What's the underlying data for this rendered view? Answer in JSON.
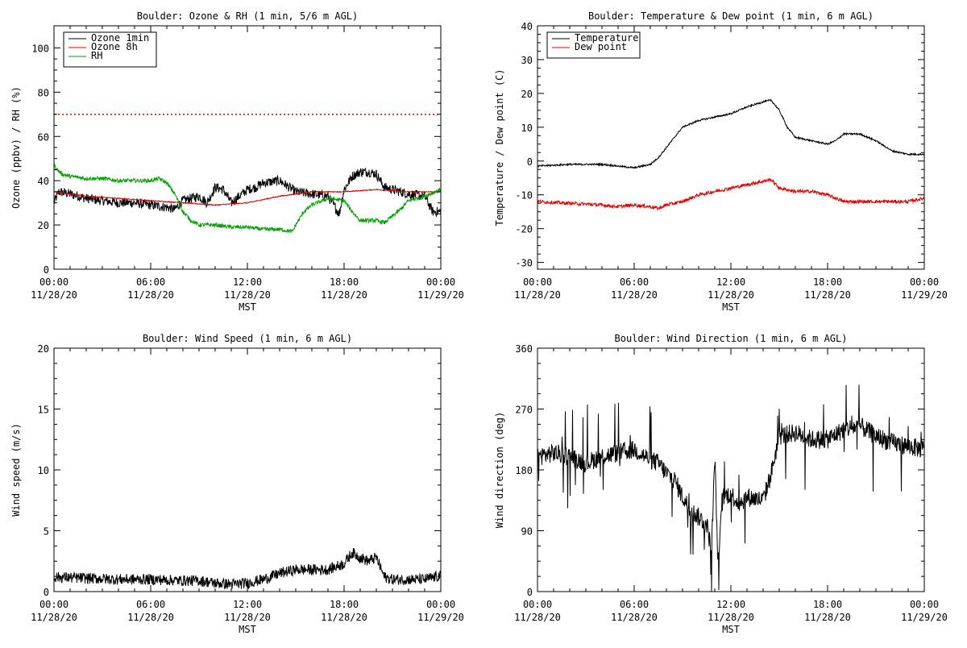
{
  "colors": {
    "black": "#000000",
    "red": "#dd0000",
    "green": "#00a000",
    "background": "#ffffff"
  },
  "chart_data": [
    {
      "id": "ozone",
      "type": "line",
      "title": "Boulder: Ozone & RH (1 min, 5/6 m AGL)",
      "xlabel": "MST",
      "ylabel": "Ozone (ppbv) / RH (%)",
      "xlim": [
        0,
        24
      ],
      "ylim": [
        0,
        110
      ],
      "yticks": [
        0,
        20,
        40,
        60,
        80,
        100
      ],
      "xticks": [
        {
          "x": 0,
          "time": "00:00",
          "date": "11/28/20"
        },
        {
          "x": 6,
          "time": "06:00",
          "date": "11/28/20"
        },
        {
          "x": 12,
          "time": "12:00",
          "date": "11/28/20"
        },
        {
          "x": 18,
          "time": "18:00",
          "date": "11/28/20"
        },
        {
          "x": 24,
          "time": "00:00",
          "date": "11/29/20"
        }
      ],
      "legend_position": "top-left",
      "reference_line": {
        "y": 70,
        "color": "#dd0000",
        "style": "dotted"
      },
      "series": [
        {
          "name": "Ozone 1min",
          "color": "#000000",
          "noise": 2.2,
          "x": [
            0,
            0.3,
            1,
            2,
            3,
            4,
            5,
            6,
            7,
            7.5,
            8,
            9,
            9.5,
            10,
            10.5,
            11,
            11.5,
            12,
            12.5,
            13,
            14,
            15,
            16,
            17,
            17.7,
            18,
            18.5,
            19,
            19.5,
            20,
            20.5,
            21,
            22,
            23,
            23.5,
            24
          ],
          "y": [
            30,
            35,
            34,
            32,
            31,
            30,
            30,
            29,
            28,
            27,
            31,
            33,
            30,
            37,
            36,
            30,
            33,
            36,
            37,
            39,
            40,
            35,
            34,
            33,
            25,
            36,
            42,
            44,
            44,
            43,
            37,
            36,
            34,
            33,
            26,
            26
          ]
        },
        {
          "name": "Ozone 8h",
          "color": "#dd0000",
          "noise": 0.2,
          "x": [
            0,
            2,
            4,
            6,
            8,
            10,
            12,
            14,
            16,
            18,
            20,
            22,
            24
          ],
          "y": [
            35,
            33,
            32,
            31,
            30,
            29,
            30,
            33,
            35,
            35,
            36,
            35,
            35
          ]
        },
        {
          "name": "RH",
          "color": "#00a000",
          "noise": 0.9,
          "x": [
            0,
            0.2,
            0.5,
            1,
            2,
            3,
            4,
            5,
            6,
            6.5,
            7,
            7.5,
            8,
            8.5,
            9,
            10,
            11,
            12,
            13,
            14,
            14.8,
            15,
            15.5,
            16,
            17,
            18,
            18.5,
            19,
            20,
            20.5,
            21,
            21.5,
            22,
            23,
            24
          ],
          "y": [
            47,
            45,
            43,
            42,
            41,
            41,
            40,
            40,
            40,
            41,
            39,
            34,
            26,
            22,
            20,
            20,
            19,
            19,
            18,
            18,
            17,
            20,
            26,
            29,
            32,
            31,
            26,
            22,
            22,
            21,
            24,
            27,
            31,
            33,
            36
          ]
        }
      ]
    },
    {
      "id": "temp",
      "type": "line",
      "title": "Boulder: Temperature & Dew point (1 min, 6 m AGL)",
      "xlabel": "MST",
      "ylabel": "Temperature / Dew point (C)",
      "xlim": [
        0,
        24
      ],
      "ylim": [
        -32,
        40
      ],
      "yticks": [
        -30,
        -20,
        -10,
        0,
        10,
        20,
        30,
        40
      ],
      "xticks": [
        {
          "x": 0,
          "time": "00:00",
          "date": "11/28/20"
        },
        {
          "x": 6,
          "time": "06:00",
          "date": "11/28/20"
        },
        {
          "x": 12,
          "time": "12:00",
          "date": "11/28/20"
        },
        {
          "x": 18,
          "time": "18:00",
          "date": "11/28/20"
        },
        {
          "x": 24,
          "time": "00:00",
          "date": "11/29/20"
        }
      ],
      "legend_position": "top-left",
      "series": [
        {
          "name": "Temperature",
          "color": "#000000",
          "noise": 0.25,
          "x": [
            0,
            2,
            4,
            5,
            6,
            6.5,
            7,
            7.5,
            8,
            8.5,
            9,
            10,
            11,
            12,
            13,
            14,
            14.5,
            15,
            15.5,
            16,
            17,
            17.5,
            18,
            18.5,
            19,
            20,
            20.5,
            21,
            22,
            23,
            24
          ],
          "y": [
            -1.5,
            -1,
            -1,
            -1.5,
            -2,
            -1.5,
            -1,
            1,
            4,
            7,
            10,
            12,
            13,
            14,
            16,
            17.5,
            18,
            15,
            10,
            7,
            6,
            5.5,
            5,
            6,
            8,
            8,
            7,
            6,
            3,
            2,
            2
          ]
        },
        {
          "name": "Dew point",
          "color": "#dd0000",
          "noise": 0.5,
          "x": [
            0,
            2,
            4,
            5,
            6,
            7,
            7.5,
            8,
            9,
            10,
            11,
            12,
            13,
            14,
            14.5,
            15,
            16,
            17,
            18,
            18.5,
            19,
            20,
            21,
            22,
            23,
            24
          ],
          "y": [
            -12,
            -12.5,
            -13,
            -13.5,
            -13,
            -13.5,
            -14,
            -13,
            -12,
            -10,
            -9,
            -8,
            -7,
            -6,
            -5.5,
            -8,
            -9,
            -9,
            -10,
            -11,
            -12,
            -12,
            -12,
            -12,
            -12,
            -11
          ]
        }
      ]
    },
    {
      "id": "wspd",
      "type": "line",
      "title": "Boulder: Wind Speed (1 min, 6 m AGL)",
      "xlabel": "MST",
      "ylabel": "Wind speed (m/s)",
      "xlim": [
        0,
        24
      ],
      "ylim": [
        0,
        20
      ],
      "yticks": [
        0,
        5,
        10,
        15,
        20
      ],
      "xticks": [
        {
          "x": 0,
          "time": "00:00",
          "date": "11/28/20"
        },
        {
          "x": 6,
          "time": "06:00",
          "date": "11/28/20"
        },
        {
          "x": 12,
          "time": "12:00",
          "date": "11/28/20"
        },
        {
          "x": 18,
          "time": "18:00",
          "date": "11/28/20"
        },
        {
          "x": 24,
          "time": "00:00",
          "date": "11/29/20"
        }
      ],
      "series": [
        {
          "color": "#000000",
          "noise": 0.45,
          "clampMin": 0,
          "x": [
            0,
            2,
            4,
            6,
            8,
            9,
            10,
            11,
            12,
            13,
            14,
            15,
            16,
            17,
            18,
            18.5,
            19,
            19.5,
            20,
            20.5,
            21,
            22,
            23,
            24
          ],
          "y": [
            1.2,
            1.1,
            1.0,
            1.0,
            0.9,
            0.9,
            0.7,
            0.6,
            0.7,
            1.0,
            1.5,
            1.8,
            1.8,
            1.8,
            2.3,
            3.2,
            2.8,
            2.5,
            2.8,
            1.2,
            1.0,
            1.0,
            1.0,
            1.3
          ]
        }
      ]
    },
    {
      "id": "wdir",
      "type": "line",
      "title": "Boulder: Wind Direction (1 min, 6 m AGL)",
      "xlabel": "MST",
      "ylabel": "Wind direction (deg)",
      "xlim": [
        0,
        24
      ],
      "ylim": [
        0,
        360
      ],
      "yticks": [
        0,
        90,
        180,
        270,
        360
      ],
      "xticks": [
        {
          "x": 0,
          "time": "00:00",
          "date": "11/28/20"
        },
        {
          "x": 6,
          "time": "06:00",
          "date": "11/28/20"
        },
        {
          "x": 12,
          "time": "12:00",
          "date": "11/28/20"
        },
        {
          "x": 18,
          "time": "18:00",
          "date": "11/28/20"
        },
        {
          "x": 24,
          "time": "00:00",
          "date": "11/29/20"
        }
      ],
      "series": [
        {
          "color": "#000000",
          "noise": 14,
          "spikes": 0.06,
          "clampMin": 0,
          "clampMax": 360,
          "x": [
            0,
            1,
            2,
            3,
            4,
            5,
            6,
            7,
            7.5,
            8,
            8.5,
            9,
            9.5,
            10,
            10.5,
            10.8,
            11,
            11.2,
            11.5,
            12,
            12.5,
            13,
            14,
            14.5,
            15,
            16,
            17,
            18,
            19,
            20,
            21,
            22,
            23,
            24
          ],
          "y": [
            200,
            205,
            200,
            190,
            200,
            205,
            210,
            195,
            190,
            175,
            165,
            140,
            120,
            110,
            100,
            60,
            200,
            40,
            140,
            145,
            130,
            140,
            135,
            175,
            230,
            235,
            225,
            225,
            240,
            245,
            230,
            220,
            215,
            210
          ]
        }
      ]
    }
  ]
}
